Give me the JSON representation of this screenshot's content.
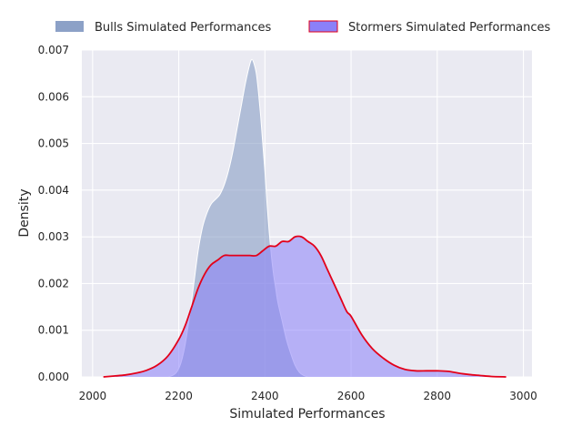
{
  "chart_data": {
    "type": "area",
    "title": "",
    "xlabel": "Simulated Performances",
    "ylabel": "Density",
    "xlim": [
      1975,
      3020
    ],
    "ylim": [
      0,
      0.007
    ],
    "xticks": [
      "2000",
      "2200",
      "2400",
      "2600",
      "2800",
      "3000"
    ],
    "yticks": [
      "0.000",
      "0.001",
      "0.002",
      "0.003",
      "0.004",
      "0.005",
      "0.006",
      "0.007"
    ],
    "grid": true,
    "legend_position": "top",
    "series": [
      {
        "name": "Bulls Simulated Performances",
        "fill": "#7f97c1",
        "edge": "#ffffff",
        "points": [
          [
            2175,
            0.0
          ],
          [
            2185,
            3e-05
          ],
          [
            2195,
            0.0001
          ],
          [
            2205,
            0.0003
          ],
          [
            2215,
            0.0007
          ],
          [
            2225,
            0.0013
          ],
          [
            2235,
            0.002
          ],
          [
            2245,
            0.0027
          ],
          [
            2255,
            0.0032
          ],
          [
            2265,
            0.0035
          ],
          [
            2275,
            0.0037
          ],
          [
            2285,
            0.0038
          ],
          [
            2295,
            0.0039
          ],
          [
            2305,
            0.0041
          ],
          [
            2315,
            0.0044
          ],
          [
            2325,
            0.0048
          ],
          [
            2335,
            0.0053
          ],
          [
            2345,
            0.0058
          ],
          [
            2355,
            0.0063
          ],
          [
            2365,
            0.0067
          ],
          [
            2370,
            0.0068
          ],
          [
            2375,
            0.0067
          ],
          [
            2380,
            0.0065
          ],
          [
            2385,
            0.0061
          ],
          [
            2390,
            0.0056
          ],
          [
            2395,
            0.005
          ],
          [
            2400,
            0.0044
          ],
          [
            2405,
            0.0037
          ],
          [
            2410,
            0.0031
          ],
          [
            2415,
            0.0026
          ],
          [
            2420,
            0.0022
          ],
          [
            2425,
            0.0019
          ],
          [
            2430,
            0.0016
          ],
          [
            2440,
            0.0012
          ],
          [
            2450,
            0.0008
          ],
          [
            2460,
            0.0005
          ],
          [
            2470,
            0.00025
          ],
          [
            2480,
            0.0001
          ],
          [
            2490,
            3e-05
          ],
          [
            2500,
            0.0
          ]
        ]
      },
      {
        "name": "Stormers Simulated Performances",
        "fill": "#8b80f9",
        "edge": "#e3001a",
        "points": [
          [
            2025,
            0.0
          ],
          [
            2050,
            2e-05
          ],
          [
            2075,
            4e-05
          ],
          [
            2100,
            8e-05
          ],
          [
            2125,
            0.00014
          ],
          [
            2150,
            0.00025
          ],
          [
            2175,
            0.00045
          ],
          [
            2200,
            0.0008
          ],
          [
            2215,
            0.0011
          ],
          [
            2230,
            0.0015
          ],
          [
            2245,
            0.0019
          ],
          [
            2260,
            0.0022
          ],
          [
            2275,
            0.0024
          ],
          [
            2290,
            0.0025
          ],
          [
            2305,
            0.0026
          ],
          [
            2320,
            0.0026
          ],
          [
            2335,
            0.0026
          ],
          [
            2350,
            0.0026
          ],
          [
            2365,
            0.0026
          ],
          [
            2380,
            0.0026
          ],
          [
            2395,
            0.0027
          ],
          [
            2410,
            0.0028
          ],
          [
            2425,
            0.0028
          ],
          [
            2440,
            0.0029
          ],
          [
            2455,
            0.0029
          ],
          [
            2470,
            0.003
          ],
          [
            2485,
            0.003
          ],
          [
            2500,
            0.0029
          ],
          [
            2515,
            0.0028
          ],
          [
            2530,
            0.0026
          ],
          [
            2545,
            0.0023
          ],
          [
            2560,
            0.002
          ],
          [
            2575,
            0.0017
          ],
          [
            2590,
            0.0014
          ],
          [
            2600,
            0.0013
          ],
          [
            2625,
            0.0009
          ],
          [
            2650,
            0.0006
          ],
          [
            2675,
            0.0004
          ],
          [
            2700,
            0.00025
          ],
          [
            2725,
            0.00016
          ],
          [
            2750,
            0.00013
          ],
          [
            2775,
            0.00013
          ],
          [
            2800,
            0.00013
          ],
          [
            2825,
            0.00012
          ],
          [
            2850,
            8e-05
          ],
          [
            2875,
            5e-05
          ],
          [
            2900,
            3e-05
          ],
          [
            2925,
            1e-05
          ],
          [
            2960,
            0.0
          ]
        ]
      }
    ]
  }
}
